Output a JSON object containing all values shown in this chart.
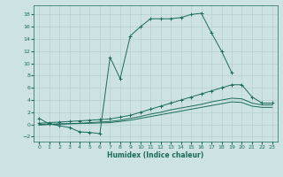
{
  "xlabel": "Humidex (Indice chaleur)",
  "xlim": [
    -0.5,
    23.5
  ],
  "ylim": [
    -2.8,
    19.5
  ],
  "xticks": [
    0,
    1,
    2,
    3,
    4,
    5,
    6,
    7,
    8,
    9,
    10,
    11,
    12,
    13,
    14,
    15,
    16,
    17,
    18,
    19,
    20,
    21,
    22,
    23
  ],
  "yticks": [
    -2,
    0,
    2,
    4,
    6,
    8,
    10,
    12,
    14,
    16,
    18
  ],
  "background_color": "#cde3e3",
  "grid_color": "#b8d0d0",
  "line_color": "#1a6b5a",
  "figsize": [
    3.2,
    2.0
  ],
  "dpi": 100,
  "series": [
    {
      "x": [
        0,
        1,
        2,
        3,
        4,
        5,
        6,
        7,
        8,
        9,
        10,
        11,
        12,
        13,
        14,
        15,
        16,
        17,
        18,
        19
      ],
      "y": [
        1.0,
        0.1,
        -0.2,
        -0.5,
        -1.2,
        -1.3,
        -1.5,
        11.0,
        7.5,
        14.5,
        16.0,
        17.3,
        17.3,
        17.3,
        17.5,
        18.0,
        18.2,
        15.0,
        12.0,
        8.5
      ],
      "marker": "+"
    },
    {
      "x": [
        0,
        1,
        2,
        3,
        4,
        5,
        6,
        7,
        8,
        9,
        10,
        11,
        12,
        13,
        14,
        15,
        16,
        17,
        18,
        19,
        20,
        21,
        22,
        23
      ],
      "y": [
        0.2,
        0.3,
        0.4,
        0.5,
        0.6,
        0.7,
        0.8,
        0.9,
        1.2,
        1.5,
        2.0,
        2.5,
        3.0,
        3.5,
        4.0,
        4.5,
        5.0,
        5.5,
        6.0,
        6.5,
        6.5,
        4.5,
        3.5,
        3.5
      ],
      "marker": "+"
    },
    {
      "x": [
        0,
        1,
        2,
        3,
        4,
        5,
        6,
        7,
        8,
        9,
        10,
        11,
        12,
        13,
        14,
        15,
        16,
        17,
        18,
        19,
        20,
        21,
        22,
        23
      ],
      "y": [
        0.0,
        0.05,
        0.1,
        0.15,
        0.2,
        0.3,
        0.4,
        0.5,
        0.7,
        1.0,
        1.3,
        1.7,
        2.0,
        2.4,
        2.7,
        3.0,
        3.3,
        3.7,
        4.0,
        4.3,
        4.2,
        3.5,
        3.2,
        3.2
      ],
      "marker": null
    },
    {
      "x": [
        0,
        1,
        2,
        3,
        4,
        5,
        6,
        7,
        8,
        9,
        10,
        11,
        12,
        13,
        14,
        15,
        16,
        17,
        18,
        19,
        20,
        21,
        22,
        23
      ],
      "y": [
        -0.1,
        0.0,
        0.05,
        0.1,
        0.15,
        0.2,
        0.25,
        0.3,
        0.5,
        0.7,
        1.0,
        1.3,
        1.6,
        1.9,
        2.2,
        2.5,
        2.8,
        3.1,
        3.4,
        3.7,
        3.6,
        3.0,
        2.8,
        2.8
      ],
      "marker": null
    }
  ]
}
